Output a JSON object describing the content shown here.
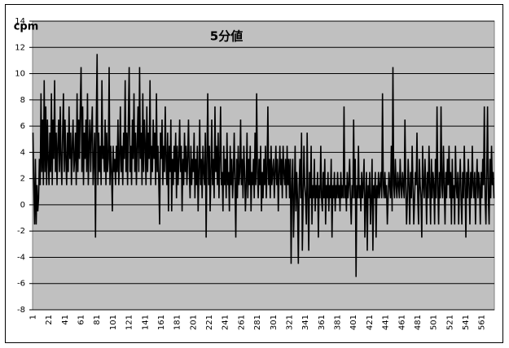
{
  "chart_data": {
    "type": "line",
    "title": "5分値",
    "y_label": "cpm",
    "color": "#000000",
    "grid": true,
    "ylim": [
      -8,
      14
    ],
    "yticks": [
      -8,
      -6,
      -4,
      -2,
      0,
      2,
      4,
      6,
      8,
      10,
      12,
      14
    ],
    "categories": [
      "1",
      null,
      null,
      null,
      null,
      null,
      null,
      null,
      null,
      null,
      null,
      null,
      null,
      null,
      null,
      null,
      null,
      null,
      null,
      null,
      "21",
      null,
      null,
      null,
      null,
      null,
      null,
      null,
      null,
      null,
      null,
      null,
      null,
      null,
      null,
      null,
      null,
      null,
      null,
      null,
      "41",
      null,
      null,
      null,
      null,
      null,
      null,
      null,
      null,
      null,
      null,
      null,
      null,
      null,
      null,
      null,
      null,
      null,
      null,
      null,
      "61",
      null,
      null,
      null,
      null,
      null,
      null,
      null,
      null,
      null,
      null,
      null,
      null,
      null,
      null,
      null,
      null,
      null,
      null,
      null,
      "81",
      null,
      null,
      null,
      null,
      null,
      null,
      null,
      null,
      null,
      null,
      null,
      null,
      null,
      null,
      null,
      null,
      null,
      null,
      null,
      "101",
      null,
      null,
      null,
      null,
      null,
      null,
      null,
      null,
      null,
      null,
      null,
      null,
      null,
      null,
      null,
      null,
      null,
      null,
      null,
      "121",
      null,
      null,
      null,
      null,
      null,
      null,
      null,
      null,
      null,
      null,
      null,
      null,
      null,
      null,
      null,
      null,
      null,
      null,
      null,
      "141",
      null,
      null,
      null,
      null,
      null,
      null,
      null,
      null,
      null,
      null,
      null,
      null,
      null,
      null,
      null,
      null,
      null,
      null,
      null,
      "161",
      null,
      null,
      null,
      null,
      null,
      null,
      null,
      null,
      null,
      null,
      null,
      null,
      null,
      null,
      null,
      null,
      null,
      null,
      null,
      "181",
      null,
      null,
      null,
      null,
      null,
      null,
      null,
      null,
      null,
      null,
      null,
      null,
      null,
      null,
      null,
      null,
      null,
      null,
      null,
      "201",
      null,
      null,
      null,
      null,
      null,
      null,
      null,
      null,
      null,
      null,
      null,
      null,
      null,
      null,
      null,
      null,
      null,
      null,
      null,
      "221",
      null,
      null,
      null,
      null,
      null,
      null,
      null,
      null,
      null,
      null,
      null,
      null,
      null,
      null,
      null,
      null,
      null,
      null,
      null,
      "241",
      null,
      null,
      null,
      null,
      null,
      null,
      null,
      null,
      null,
      null,
      null,
      null,
      null,
      null,
      null,
      null,
      null,
      null,
      null,
      "261",
      null,
      null,
      null,
      null,
      null,
      null,
      null,
      null,
      null,
      null,
      null,
      null,
      null,
      null,
      null,
      null,
      null,
      null,
      null,
      "281",
      null,
      null,
      null,
      null,
      null,
      null,
      null,
      null,
      null,
      null,
      null,
      null,
      null,
      null,
      null,
      null,
      null,
      null,
      null,
      "301",
      null,
      null,
      null,
      null,
      null,
      null,
      null,
      null,
      null,
      null,
      null,
      null,
      null,
      null,
      null,
      null,
      null,
      null,
      null,
      "321",
      null,
      null,
      null,
      null,
      null,
      null,
      null,
      null,
      null,
      null,
      null,
      null,
      null,
      null,
      null,
      null,
      null,
      null,
      null,
      "341",
      null,
      null,
      null,
      null,
      null,
      null,
      null,
      null,
      null,
      null,
      null,
      null,
      null,
      null,
      null,
      null,
      null,
      null,
      null,
      "361",
      null,
      null,
      null,
      null,
      null,
      null,
      null,
      null,
      null,
      null,
      null,
      null,
      null,
      null,
      null,
      null,
      null,
      null,
      null,
      "381",
      null,
      null,
      null,
      null,
      null,
      null,
      null,
      null,
      null,
      null,
      null,
      null,
      null,
      null,
      null,
      null,
      null,
      null,
      null,
      "401",
      null,
      null,
      null,
      null,
      null,
      null,
      null,
      null,
      null,
      null,
      null,
      null,
      null,
      null,
      null,
      null,
      null,
      null,
      null,
      "421",
      null,
      null,
      null,
      null,
      null,
      null,
      null,
      null,
      null,
      null,
      null,
      null,
      null,
      null,
      null,
      null,
      null,
      null,
      null,
      "441",
      null,
      null,
      null,
      null,
      null,
      null,
      null,
      null,
      null,
      null,
      null,
      null,
      null,
      null,
      null,
      null,
      null,
      null,
      null,
      "461",
      null,
      null,
      null,
      null,
      null,
      null,
      null,
      null,
      null,
      null,
      null,
      null,
      null,
      null,
      null,
      null,
      null,
      null,
      null,
      "481",
      null,
      null,
      null,
      null,
      null,
      null,
      null,
      null,
      null,
      null,
      null,
      null,
      null,
      null,
      null,
      null,
      null,
      null,
      null,
      "501",
      null,
      null,
      null,
      null,
      null,
      null,
      null,
      null,
      null,
      null,
      null,
      null,
      null,
      null,
      null,
      null,
      null,
      null,
      null,
      "521",
      null,
      null,
      null,
      null,
      null,
      null,
      null,
      null,
      null,
      null,
      null,
      null,
      null,
      null,
      null,
      null,
      null,
      null,
      null,
      "541",
      null,
      null,
      null,
      null,
      null,
      null,
      null,
      null,
      null,
      null,
      null,
      null,
      null,
      null,
      null,
      null,
      null,
      null,
      null,
      "561",
      null,
      null,
      null,
      null,
      null,
      null,
      null,
      null,
      null,
      null,
      null,
      null,
      null,
      null,
      null
    ],
    "values": [
      5.5,
      1.5,
      -1.5,
      3.5,
      -1.5,
      1.5,
      -0.5,
      0.5,
      3.5,
      1.5,
      8.5,
      2.5,
      6.5,
      1.5,
      9.5,
      2.5,
      7.5,
      1.5,
      6.5,
      3.5,
      1.5,
      5.5,
      2.5,
      8.5,
      1.5,
      6.5,
      3.5,
      9.5,
      2.5,
      5.5,
      1.5,
      4.5,
      6.5,
      2.5,
      7.5,
      3.5,
      1.5,
      5.5,
      8.5,
      2.5,
      6.5,
      3.5,
      1.5,
      5.5,
      2.5,
      7.5,
      3.5,
      5.5,
      1.5,
      4.5,
      6.5,
      2.5,
      3.5,
      5.5,
      1.5,
      8.5,
      2.5,
      6.5,
      3.5,
      7.5,
      10.5,
      2.5,
      7.5,
      1.5,
      5.5,
      3.5,
      6.5,
      2.5,
      8.5,
      1.5,
      4.5,
      6.5,
      2.5,
      5.5,
      7.5,
      1.5,
      3.5,
      5.5,
      -2.5,
      6.5,
      11.5,
      1.5,
      5.5,
      2.5,
      4.5,
      1.5,
      9.5,
      3.5,
      4.5,
      2.5,
      6.5,
      1.5,
      5.5,
      2.5,
      3.5,
      10.5,
      1.5,
      4.5,
      2.5,
      -0.5,
      4.5,
      2.5,
      3.5,
      1.5,
      4.5,
      2.5,
      6.5,
      1.5,
      3.5,
      7.5,
      2.5,
      4.5,
      1.5,
      5.5,
      3.5,
      9.5,
      2.5,
      5.5,
      1.5,
      6.5,
      10.5,
      2.5,
      4.5,
      1.5,
      6.5,
      3.5,
      8.5,
      2.5,
      5.5,
      1.5,
      4.5,
      7.5,
      2.5,
      10.5,
      3.5,
      5.5,
      1.5,
      8.5,
      2.5,
      6.5,
      4.5,
      1.5,
      7.5,
      2.5,
      5.5,
      3.5,
      9.5,
      1.5,
      4.5,
      2.5,
      6.5,
      3.5,
      5.5,
      1.5,
      8.5,
      2.5,
      4.5,
      1.5,
      -1.5,
      5.5,
      3.5,
      6.5,
      1.5,
      4.5,
      2.5,
      7.5,
      3.5,
      1.5,
      5.5,
      -0.5,
      4.5,
      2.5,
      6.5,
      -0.5,
      3.5,
      1.5,
      4.5,
      2.5,
      5.5,
      0.5,
      4.5,
      1.5,
      3.5,
      6.5,
      2.5,
      4.5,
      -0.5,
      3.5,
      1.5,
      5.5,
      2.5,
      4.5,
      1.5,
      3.5,
      6.5,
      2.5,
      0.5,
      4.5,
      1.5,
      3.5,
      2.5,
      5.5,
      0.5,
      3.5,
      1.5,
      4.5,
      -0.5,
      2.5,
      6.5,
      1.5,
      3.5,
      0.5,
      4.5,
      2.5,
      1.5,
      5.5,
      -2.5,
      3.5,
      8.5,
      1.5,
      4.5,
      -0.5,
      2.5,
      6.5,
      1.5,
      3.5,
      0.5,
      7.5,
      2.5,
      4.5,
      1.5,
      5.5,
      0.5,
      3.5,
      7.5,
      1.5,
      2.5,
      -0.5,
      4.5,
      1.5,
      3.5,
      0.5,
      5.5,
      1.5,
      2.5,
      -0.5,
      4.5,
      1.5,
      3.5,
      0.5,
      2.5,
      5.5,
      1.5,
      -2.5,
      3.5,
      0.5,
      4.5,
      1.5,
      2.5,
      6.5,
      1.5,
      3.5,
      0.5,
      4.5,
      2.5,
      -0.5,
      1.5,
      5.5,
      0.5,
      3.5,
      1.5,
      4.5,
      -0.5,
      2.5,
      1.5,
      3.5,
      0.5,
      5.5,
      1.5,
      8.5,
      2.5,
      0.5,
      3.5,
      1.5,
      4.5,
      -0.5,
      2.5,
      0.5,
      3.5,
      1.5,
      4.5,
      0.5,
      2.5,
      7.5,
      1.5,
      3.5,
      0.5,
      4.5,
      1.5,
      2.5,
      3.5,
      0.5,
      2.5,
      4.5,
      1.5,
      3.5,
      -0.5,
      2.5,
      4.5,
      1.5,
      3.5,
      0.5,
      4.5,
      2.5,
      1.5,
      3.5,
      0.5,
      4.5,
      1.5,
      3.5,
      0.5,
      3.5,
      -4.5,
      1.5,
      3.5,
      -2.5,
      0.5,
      4.5,
      -0.5,
      2.5,
      0.5,
      -4.5,
      1.5,
      3.5,
      0.5,
      5.5,
      -3.5,
      0.5,
      4.5,
      1.5,
      0.5,
      -1.5,
      5.5,
      0.5,
      -3.5,
      2.5,
      0.5,
      4.5,
      -1.5,
      1.5,
      0.5,
      3.5,
      -0.5,
      1.5,
      0.5,
      2.5,
      -2.5,
      1.5,
      0.5,
      4.5,
      0.5,
      -0.5,
      2.5,
      0.5,
      3.5,
      -1.5,
      1.5,
      0.5,
      2.5,
      -0.5,
      1.5,
      0.5,
      3.5,
      -2.5,
      1.5,
      0.5,
      2.5,
      -0.5,
      1.5,
      0.5,
      2.5,
      0.5,
      1.5,
      -0.5,
      2.5,
      0.5,
      1.5,
      0.5,
      7.5,
      0.5,
      1.5,
      -0.5,
      2.5,
      0.5,
      1.5,
      3.5,
      0.5,
      -1.5,
      1.5,
      0.5,
      6.5,
      0.5,
      3.5,
      -5.5,
      1.5,
      0.5,
      4.5,
      0.5,
      1.5,
      -0.5,
      2.5,
      0.5,
      1.5,
      3.5,
      -2.5,
      0.5,
      2.5,
      -3.5,
      1.5,
      0.5,
      2.5,
      -1.5,
      0.5,
      3.5,
      -3.5,
      1.5,
      0.5,
      2.5,
      -2.5,
      1.5,
      0.5,
      2.5,
      0.5,
      1.5,
      2.5,
      0.5,
      8.5,
      1.5,
      0.5,
      2.5,
      0.5,
      1.5,
      -1.5,
      0.5,
      2.5,
      1.5,
      0.5,
      4.5,
      -0.5,
      10.5,
      1.5,
      0.5,
      3.5,
      1.5,
      0.5,
      2.5,
      1.5,
      0.5,
      3.5,
      1.5,
      0.5,
      2.5,
      1.5,
      0.5,
      6.5,
      1.5,
      -1.5,
      0.5,
      3.5,
      1.5,
      -1.5,
      2.5,
      0.5,
      4.5,
      1.5,
      -1.5,
      0.5,
      2.5,
      1.5,
      5.5,
      0.5,
      -1.5,
      3.5,
      1.5,
      0.5,
      -2.5,
      4.5,
      1.5,
      0.5,
      3.5,
      1.5,
      -1.5,
      2.5,
      0.5,
      4.5,
      1.5,
      -1.5,
      3.5,
      0.5,
      2.5,
      1.5,
      -1.5,
      3.5,
      0.5,
      7.5,
      1.5,
      -1.5,
      2.5,
      0.5,
      7.5,
      1.5,
      0.5,
      4.5,
      1.5,
      -1.5,
      2.5,
      0.5,
      3.5,
      1.5,
      4.5,
      0.5,
      2.5,
      -1.5,
      3.5,
      0.5,
      1.5,
      -1.5,
      4.5,
      1.5,
      0.5,
      2.5,
      -1.5,
      1.5,
      3.5,
      0.5,
      -1.5,
      2.5,
      0.5,
      4.5,
      1.5,
      -2.5,
      2.5,
      0.5,
      3.5,
      1.5,
      -1.5,
      2.5,
      0.5,
      4.5,
      1.5,
      0.5,
      2.5,
      -1.5,
      1.5,
      3.5,
      0.5,
      2.5,
      1.5,
      -1.5,
      2.5,
      0.5,
      3.5,
      1.5,
      7.5,
      0.5,
      -1.5,
      2.5,
      7.5,
      0.5,
      -1.5,
      3.5,
      0.5,
      4.5,
      1.5,
      2.5,
      0.5
    ]
  }
}
